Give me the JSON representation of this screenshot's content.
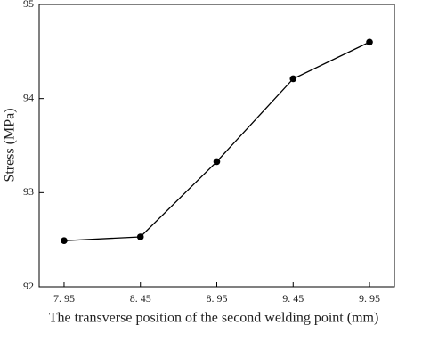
{
  "chart_data": {
    "type": "line",
    "x_label": "The transverse position of the second welding point (mm)",
    "y_label": "Stress (MPa)",
    "x": [
      7.95,
      8.45,
      8.95,
      9.45,
      9.95
    ],
    "series": [
      {
        "color": "#000000",
        "values": [
          92.49,
          92.53,
          93.33,
          94.21,
          94.6
        ]
      }
    ],
    "xlim": [
      7.787,
      10.113
    ],
    "xticks": [
      {
        "value": 7.95,
        "label": "7. 95"
      },
      {
        "value": 8.45,
        "label": "8. 45"
      },
      {
        "value": 8.95,
        "label": "8. 95"
      },
      {
        "value": 9.45,
        "label": "9. 45"
      },
      {
        "value": 9.95,
        "label": "9. 95"
      }
    ],
    "ylim": [
      92,
      95
    ],
    "yticks": [
      92,
      93,
      94,
      95
    ]
  }
}
